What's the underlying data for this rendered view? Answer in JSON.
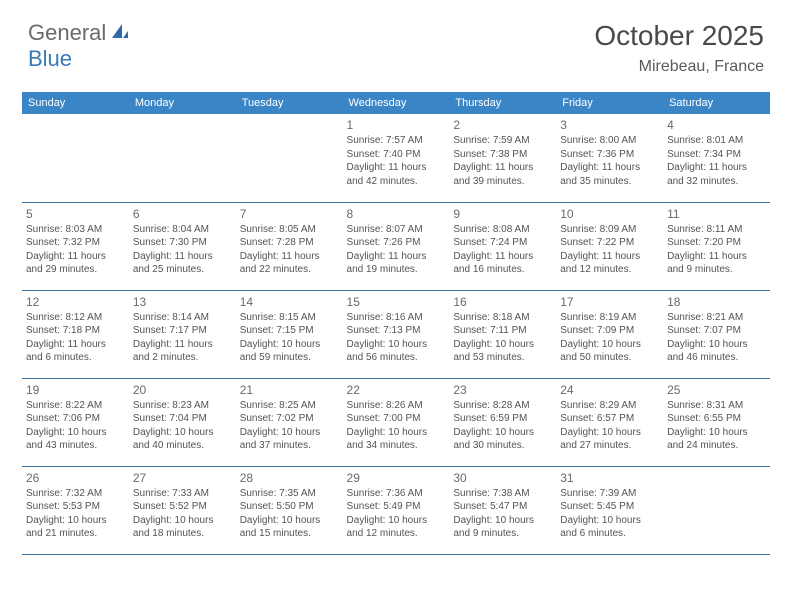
{
  "logo": {
    "general": "General",
    "blue": "Blue"
  },
  "title": "October 2025",
  "location": "Mirebeau, France",
  "colors": {
    "header_bg": "#3a85c6",
    "header_text": "#ffffff",
    "border": "#3a6fa0",
    "logo_gray": "#6a6a6a",
    "logo_blue": "#3a7ab8",
    "title_color": "#4a4a4a",
    "body_text": "#545454"
  },
  "day_headers": [
    "Sunday",
    "Monday",
    "Tuesday",
    "Wednesday",
    "Thursday",
    "Friday",
    "Saturday"
  ],
  "weeks": [
    [
      {
        "n": "",
        "sr": "",
        "ss": "",
        "dl": ""
      },
      {
        "n": "",
        "sr": "",
        "ss": "",
        "dl": ""
      },
      {
        "n": "",
        "sr": "",
        "ss": "",
        "dl": ""
      },
      {
        "n": "1",
        "sr": "Sunrise: 7:57 AM",
        "ss": "Sunset: 7:40 PM",
        "dl": "Daylight: 11 hours and 42 minutes."
      },
      {
        "n": "2",
        "sr": "Sunrise: 7:59 AM",
        "ss": "Sunset: 7:38 PM",
        "dl": "Daylight: 11 hours and 39 minutes."
      },
      {
        "n": "3",
        "sr": "Sunrise: 8:00 AM",
        "ss": "Sunset: 7:36 PM",
        "dl": "Daylight: 11 hours and 35 minutes."
      },
      {
        "n": "4",
        "sr": "Sunrise: 8:01 AM",
        "ss": "Sunset: 7:34 PM",
        "dl": "Daylight: 11 hours and 32 minutes."
      }
    ],
    [
      {
        "n": "5",
        "sr": "Sunrise: 8:03 AM",
        "ss": "Sunset: 7:32 PM",
        "dl": "Daylight: 11 hours and 29 minutes."
      },
      {
        "n": "6",
        "sr": "Sunrise: 8:04 AM",
        "ss": "Sunset: 7:30 PM",
        "dl": "Daylight: 11 hours and 25 minutes."
      },
      {
        "n": "7",
        "sr": "Sunrise: 8:05 AM",
        "ss": "Sunset: 7:28 PM",
        "dl": "Daylight: 11 hours and 22 minutes."
      },
      {
        "n": "8",
        "sr": "Sunrise: 8:07 AM",
        "ss": "Sunset: 7:26 PM",
        "dl": "Daylight: 11 hours and 19 minutes."
      },
      {
        "n": "9",
        "sr": "Sunrise: 8:08 AM",
        "ss": "Sunset: 7:24 PM",
        "dl": "Daylight: 11 hours and 16 minutes."
      },
      {
        "n": "10",
        "sr": "Sunrise: 8:09 AM",
        "ss": "Sunset: 7:22 PM",
        "dl": "Daylight: 11 hours and 12 minutes."
      },
      {
        "n": "11",
        "sr": "Sunrise: 8:11 AM",
        "ss": "Sunset: 7:20 PM",
        "dl": "Daylight: 11 hours and 9 minutes."
      }
    ],
    [
      {
        "n": "12",
        "sr": "Sunrise: 8:12 AM",
        "ss": "Sunset: 7:18 PM",
        "dl": "Daylight: 11 hours and 6 minutes."
      },
      {
        "n": "13",
        "sr": "Sunrise: 8:14 AM",
        "ss": "Sunset: 7:17 PM",
        "dl": "Daylight: 11 hours and 2 minutes."
      },
      {
        "n": "14",
        "sr": "Sunrise: 8:15 AM",
        "ss": "Sunset: 7:15 PM",
        "dl": "Daylight: 10 hours and 59 minutes."
      },
      {
        "n": "15",
        "sr": "Sunrise: 8:16 AM",
        "ss": "Sunset: 7:13 PM",
        "dl": "Daylight: 10 hours and 56 minutes."
      },
      {
        "n": "16",
        "sr": "Sunrise: 8:18 AM",
        "ss": "Sunset: 7:11 PM",
        "dl": "Daylight: 10 hours and 53 minutes."
      },
      {
        "n": "17",
        "sr": "Sunrise: 8:19 AM",
        "ss": "Sunset: 7:09 PM",
        "dl": "Daylight: 10 hours and 50 minutes."
      },
      {
        "n": "18",
        "sr": "Sunrise: 8:21 AM",
        "ss": "Sunset: 7:07 PM",
        "dl": "Daylight: 10 hours and 46 minutes."
      }
    ],
    [
      {
        "n": "19",
        "sr": "Sunrise: 8:22 AM",
        "ss": "Sunset: 7:06 PM",
        "dl": "Daylight: 10 hours and 43 minutes."
      },
      {
        "n": "20",
        "sr": "Sunrise: 8:23 AM",
        "ss": "Sunset: 7:04 PM",
        "dl": "Daylight: 10 hours and 40 minutes."
      },
      {
        "n": "21",
        "sr": "Sunrise: 8:25 AM",
        "ss": "Sunset: 7:02 PM",
        "dl": "Daylight: 10 hours and 37 minutes."
      },
      {
        "n": "22",
        "sr": "Sunrise: 8:26 AM",
        "ss": "Sunset: 7:00 PM",
        "dl": "Daylight: 10 hours and 34 minutes."
      },
      {
        "n": "23",
        "sr": "Sunrise: 8:28 AM",
        "ss": "Sunset: 6:59 PM",
        "dl": "Daylight: 10 hours and 30 minutes."
      },
      {
        "n": "24",
        "sr": "Sunrise: 8:29 AM",
        "ss": "Sunset: 6:57 PM",
        "dl": "Daylight: 10 hours and 27 minutes."
      },
      {
        "n": "25",
        "sr": "Sunrise: 8:31 AM",
        "ss": "Sunset: 6:55 PM",
        "dl": "Daylight: 10 hours and 24 minutes."
      }
    ],
    [
      {
        "n": "26",
        "sr": "Sunrise: 7:32 AM",
        "ss": "Sunset: 5:53 PM",
        "dl": "Daylight: 10 hours and 21 minutes."
      },
      {
        "n": "27",
        "sr": "Sunrise: 7:33 AM",
        "ss": "Sunset: 5:52 PM",
        "dl": "Daylight: 10 hours and 18 minutes."
      },
      {
        "n": "28",
        "sr": "Sunrise: 7:35 AM",
        "ss": "Sunset: 5:50 PM",
        "dl": "Daylight: 10 hours and 15 minutes."
      },
      {
        "n": "29",
        "sr": "Sunrise: 7:36 AM",
        "ss": "Sunset: 5:49 PM",
        "dl": "Daylight: 10 hours and 12 minutes."
      },
      {
        "n": "30",
        "sr": "Sunrise: 7:38 AM",
        "ss": "Sunset: 5:47 PM",
        "dl": "Daylight: 10 hours and 9 minutes."
      },
      {
        "n": "31",
        "sr": "Sunrise: 7:39 AM",
        "ss": "Sunset: 5:45 PM",
        "dl": "Daylight: 10 hours and 6 minutes."
      },
      {
        "n": "",
        "sr": "",
        "ss": "",
        "dl": ""
      }
    ]
  ]
}
